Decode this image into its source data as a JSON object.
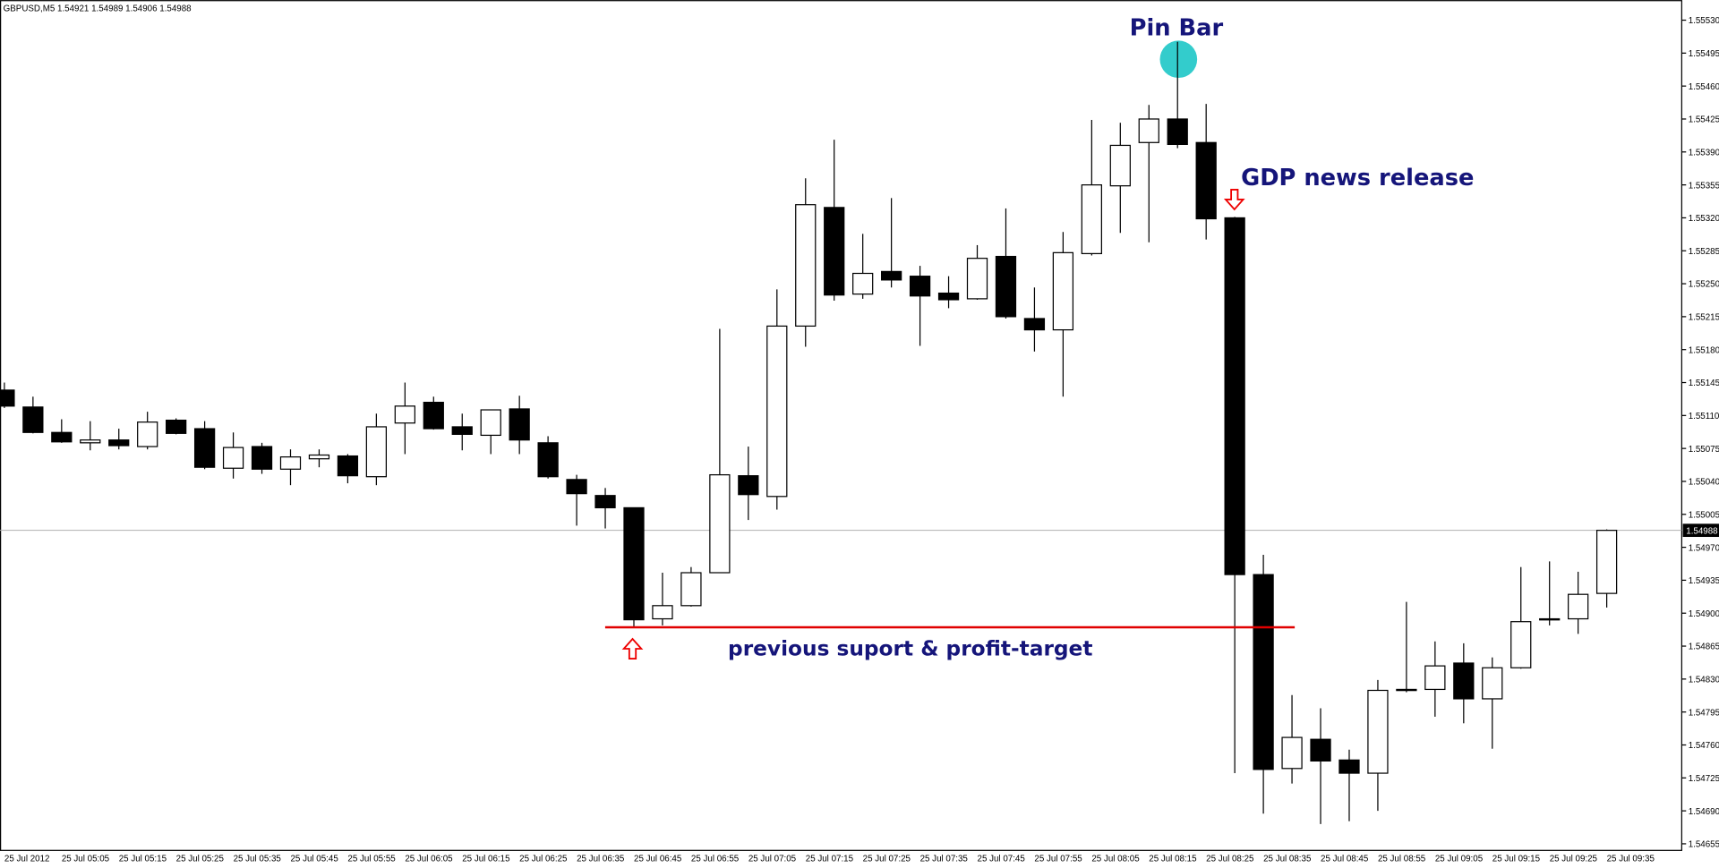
{
  "chart_data": {
    "type": "candlestick",
    "symbol": "GBPUSD,M5",
    "categories": [
      "25 Jul 2012",
      null,
      "25 Jul 05:05",
      null,
      "25 Jul 05:15",
      null,
      "25 Jul 05:25",
      null,
      "25 Jul 05:35",
      null,
      "25 Jul 05:45",
      null,
      "25 Jul 05:55",
      null,
      "25 Jul 06:05",
      null,
      "25 Jul 06:15",
      null,
      "25 Jul 06:25",
      null,
      "25 Jul 06:35",
      null,
      "25 Jul 06:45",
      null,
      "25 Jul 06:55",
      null,
      "25 Jul 07:05",
      null,
      "25 Jul 07:15",
      null,
      "25 Jul 07:25",
      null,
      "25 Jul 07:35",
      null,
      "25 Jul 07:45",
      null,
      "25 Jul 07:55",
      null,
      "25 Jul 08:05",
      null,
      "25 Jul 08:15",
      null,
      "25 Jul 08:25",
      null,
      "25 Jul 08:35",
      null,
      "25 Jul 08:45",
      null,
      "25 Jul 08:55",
      null,
      "25 Jul 09:05",
      null,
      "25 Jul 09:15",
      null,
      "25 Jul 09:25",
      null,
      "25 Jul 09:35"
    ],
    "open": [
      1.55137,
      1.55119,
      1.55092,
      1.55081,
      1.55084,
      1.55077,
      1.55105,
      1.55096,
      1.55054,
      1.55077,
      1.55053,
      1.55064,
      1.55067,
      1.55045,
      1.55102,
      1.55124,
      1.55098,
      1.55089,
      1.55117,
      1.55081,
      1.55042,
      1.55025,
      1.55012,
      1.54894,
      1.54908,
      1.54943,
      1.55046,
      1.55024,
      1.55205,
      1.55331,
      1.55239,
      1.55263,
      1.55258,
      1.5524,
      1.55234,
      1.55279,
      1.55213,
      1.55201,
      1.55282,
      1.55354,
      1.554,
      1.55425,
      1.554,
      1.5532,
      1.54941,
      1.54735,
      1.54766,
      1.54744,
      1.5473,
      1.54818,
      1.54819,
      1.54847,
      1.54809,
      1.54842,
      1.54893,
      1.54894,
      1.54921
    ],
    "high": [
      1.55145,
      1.5513,
      1.55106,
      1.55104,
      1.55096,
      1.55114,
      1.55107,
      1.55104,
      1.55092,
      1.55081,
      1.55074,
      1.55074,
      1.55069,
      1.55112,
      1.55145,
      1.5513,
      1.55112,
      1.55116,
      1.55131,
      1.55088,
      1.55047,
      1.55033,
      1.55012,
      1.54943,
      1.54949,
      1.55202,
      1.55077,
      1.55244,
      1.55362,
      1.55403,
      1.55303,
      1.55341,
      1.55269,
      1.55258,
      1.55291,
      1.5533,
      1.55246,
      1.55305,
      1.55424,
      1.55421,
      1.5544,
      1.55507,
      1.55441,
      1.55321,
      1.54962,
      1.54813,
      1.54799,
      1.54755,
      1.54829,
      1.54912,
      1.5487,
      1.54868,
      1.54853,
      1.54949,
      1.54955,
      1.54944,
      1.54989
    ],
    "low": [
      1.55118,
      1.55091,
      1.55081,
      1.55073,
      1.55074,
      1.55074,
      1.5509,
      1.55053,
      1.55043,
      1.55048,
      1.55036,
      1.55055,
      1.55038,
      1.55036,
      1.55069,
      1.55095,
      1.55073,
      1.55069,
      1.55069,
      1.55043,
      1.54993,
      1.5499,
      1.54885,
      1.54887,
      1.54907,
      1.54943,
      1.54999,
      1.5501,
      1.55183,
      1.55232,
      1.55234,
      1.55246,
      1.55184,
      1.55224,
      1.55233,
      1.55213,
      1.55178,
      1.5513,
      1.5528,
      1.55304,
      1.55294,
      1.55394,
      1.55297,
      1.5473,
      1.54687,
      1.54719,
      1.54676,
      1.54679,
      1.5469,
      1.54816,
      1.5479,
      1.54783,
      1.54756,
      1.54841,
      1.54887,
      1.54878,
      1.54906
    ],
    "close": [
      1.5512,
      1.55092,
      1.55082,
      1.55084,
      1.55078,
      1.55103,
      1.55091,
      1.55055,
      1.55076,
      1.55053,
      1.55066,
      1.55068,
      1.55046,
      1.55098,
      1.5512,
      1.55096,
      1.5509,
      1.55116,
      1.55084,
      1.55045,
      1.55027,
      1.55012,
      1.54893,
      1.54908,
      1.54943,
      1.55047,
      1.55026,
      1.55205,
      1.55334,
      1.55238,
      1.55261,
      1.55254,
      1.55237,
      1.55233,
      1.55277,
      1.55215,
      1.55201,
      1.55283,
      1.55355,
      1.55397,
      1.55425,
      1.55398,
      1.55319,
      1.54941,
      1.54734,
      1.54768,
      1.54743,
      1.5473,
      1.54818,
      1.54819,
      1.54844,
      1.54809,
      1.54842,
      1.54891,
      1.54894,
      1.5492,
      1.54988
    ],
    "up_color": "#ffffff",
    "down_color": "#000000",
    "ylim": [
      1.54648,
      1.55549
    ],
    "yticks": [
      {
        "value": 1.5553,
        "label": "1.55530"
      },
      1.55495,
      {
        "value": 1.5546,
        "label": "1.55460"
      },
      1.55425,
      {
        "value": 1.5539,
        "label": "1.55390"
      },
      1.55355,
      {
        "value": 1.5532,
        "label": "1.55320"
      },
      1.55285,
      {
        "value": 1.5525,
        "label": "1.55250"
      },
      1.55215,
      {
        "value": 1.5518,
        "label": "1.55180"
      },
      1.55145,
      {
        "value": 1.5511,
        "label": "1.55110"
      },
      1.55075,
      {
        "value": 1.5504,
        "label": "1.55040"
      },
      1.55005,
      {
        "value": 1.5497,
        "label": "1.54970"
      },
      1.54935,
      {
        "value": 1.549,
        "label": "1.54900"
      },
      1.54865,
      {
        "value": 1.5483,
        "label": "1.54830"
      },
      1.54795,
      {
        "value": 1.5476,
        "label": "1.54760"
      },
      1.54725,
      {
        "value": 1.5469,
        "label": "1.54690"
      },
      1.54655
    ],
    "annotations": [
      "Pin Bar",
      "GDP news release",
      "previous suport & profit-target"
    ]
  }
}
